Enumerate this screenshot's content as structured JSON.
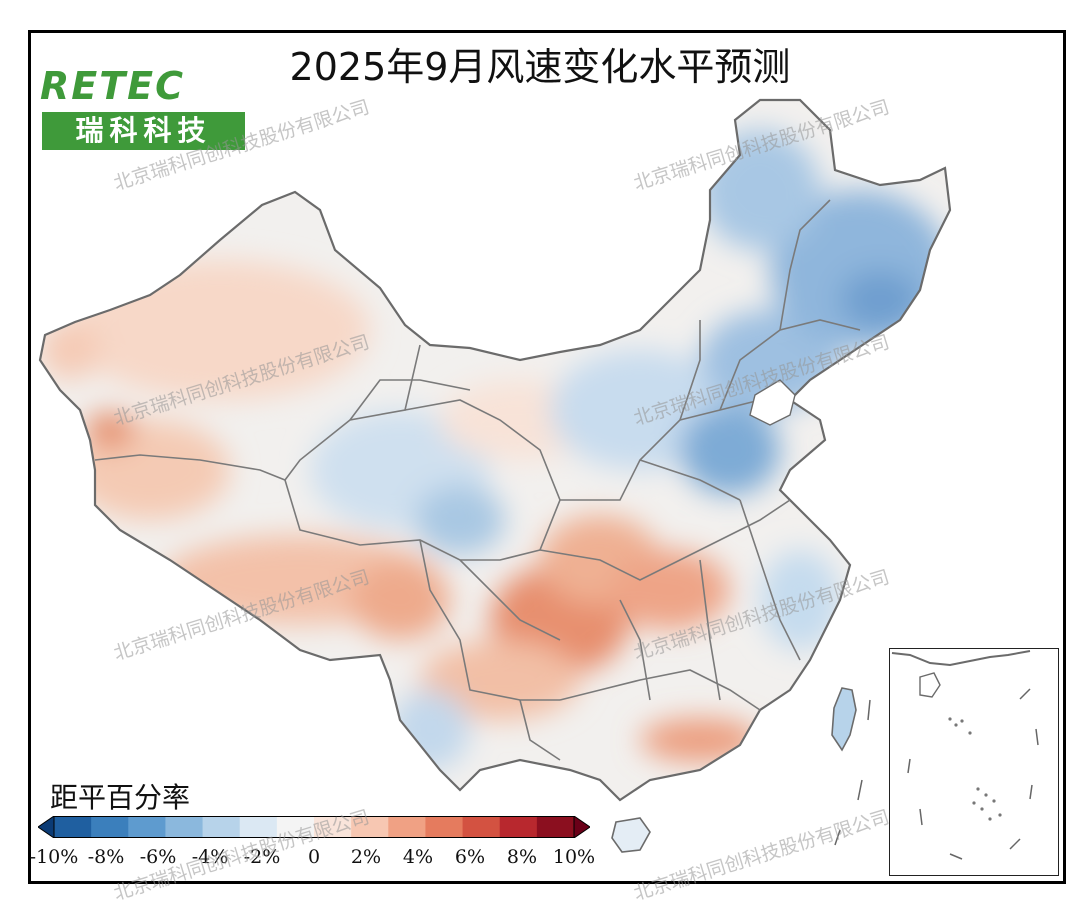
{
  "title": "2025年9月风速变化水平预测",
  "logo": {
    "english": "RETEC",
    "chinese": "瑞科科技"
  },
  "legend": {
    "title": "距平百分率",
    "ticks": [
      "-10%",
      "-8%",
      "-6%",
      "-4%",
      "-2%",
      "0",
      "2%",
      "4%",
      "6%",
      "8%",
      "10%"
    ],
    "colors": [
      "#0b3b75",
      "#1f5fa0",
      "#3b7fbc",
      "#5e9bcf",
      "#8bb8dd",
      "#b7d3ea",
      "#dbe8f3",
      "#f4f4f4",
      "#f9e4da",
      "#f7c7b2",
      "#f0a184",
      "#e57b5e",
      "#d35241",
      "#b8282e",
      "#8b0f1f",
      "#6a0018"
    ]
  },
  "watermark": "北京瑞科同创科技股份有限公司",
  "icons": {
    "inset": "south-china-sea-inset-map"
  }
}
